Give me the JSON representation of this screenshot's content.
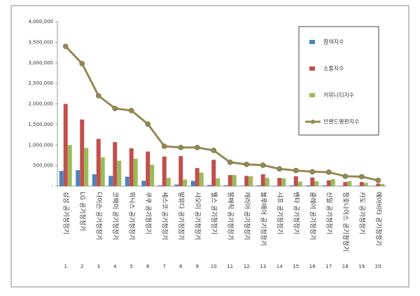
{
  "chart_data": {
    "type": "bar-line",
    "categories": [
      "삼성 공기청정기",
      "LG 공기청정기",
      "다이슨 공기청정기",
      "코웨이 공기청정기",
      "위닉스 공기청정기",
      "쿠쿠 공기청정기",
      "세스코 공기청정기",
      "발뮤다 공기청정기",
      "샤오미 공기청정기",
      "웰스 공기청정기",
      "몽매직 공기청정기",
      "캐리어 공기청정기",
      "블루에어 공기청정기",
      "샤프 공기청정기",
      "벤타 공기청정기",
      "클레어 공기청정기",
      "신일 공기청정기",
      "청호나이스 공기청정기",
      "카도 공기청정기",
      "에어비타 공기청정기"
    ],
    "ranks": [
      1,
      2,
      3,
      4,
      5,
      6,
      7,
      8,
      9,
      10,
      11,
      12,
      13,
      14,
      15,
      16,
      17,
      18,
      19,
      20
    ],
    "series": [
      {
        "name": "참여지수",
        "color": "#4f81bd",
        "kind": "bar",
        "values": [
          370000,
          390000,
          290000,
          250000,
          230000,
          130000,
          20000,
          40000,
          130000,
          30000,
          20000,
          10000,
          20000,
          10000,
          20000,
          20000,
          20000,
          10000,
          10000,
          10000
        ]
      },
      {
        "name": "소통지수",
        "color": "#c0504d",
        "kind": "bar",
        "values": [
          2000000,
          1620000,
          1150000,
          1070000,
          920000,
          840000,
          720000,
          730000,
          440000,
          640000,
          270000,
          250000,
          290000,
          200000,
          240000,
          210000,
          140000,
          100000,
          100000,
          60000
        ]
      },
      {
        "name": "커뮤니티지수",
        "color": "#9bbb59",
        "kind": "bar",
        "values": [
          1000000,
          930000,
          700000,
          620000,
          670000,
          520000,
          200000,
          160000,
          330000,
          190000,
          270000,
          240000,
          200000,
          190000,
          110000,
          120000,
          170000,
          120000,
          80000,
          50000
        ]
      },
      {
        "name": "브랜드평판지수",
        "color": "#948a54",
        "kind": "line",
        "values": [
          3400000,
          2980000,
          2200000,
          1890000,
          1840000,
          1510000,
          970000,
          940000,
          940000,
          870000,
          580000,
          530000,
          510000,
          420000,
          380000,
          350000,
          340000,
          240000,
          230000,
          140000
        ]
      }
    ],
    "ylim": [
      0,
      4000000
    ],
    "yticks": [
      {
        "value": 0,
        "label": "-"
      },
      {
        "value": 500000,
        "label": "500,000"
      },
      {
        "value": 1000000,
        "label": "1,000,000"
      },
      {
        "value": 1500000,
        "label": "1,500,000"
      },
      {
        "value": 2000000,
        "label": "2,000,000"
      },
      {
        "value": 2500000,
        "label": "2,500,000"
      },
      {
        "value": 3000000,
        "label": "3,000,000"
      },
      {
        "value": 3500000,
        "label": "3,500,000"
      },
      {
        "value": 4000000,
        "label": "4,000,000"
      }
    ],
    "grid": false,
    "legend": "right"
  }
}
